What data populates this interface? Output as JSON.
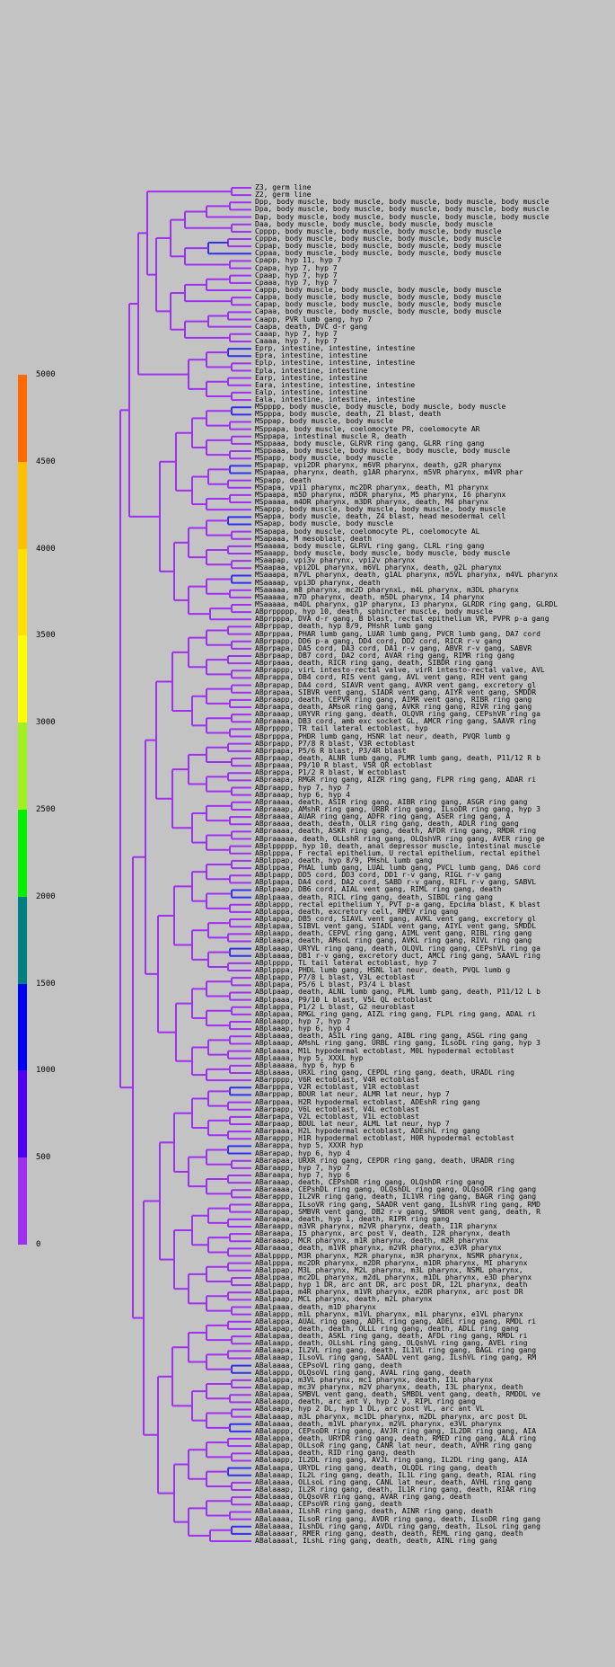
{
  "scale": {
    "labels": [
      "5000",
      "4500",
      "4000",
      "3500",
      "3000",
      "2500",
      "2000",
      "1500",
      "1000",
      "500",
      "0"
    ],
    "colors": [
      "#ff6a00",
      "#ffc000",
      "#ffe000",
      "#ffff00",
      "#a0f020",
      "#00f000",
      "#008080",
      "#0000f0",
      "#5000f0",
      "#a030f0"
    ]
  },
  "tree": {
    "branch_color": "#a030f0",
    "accent_color": "#3030f0",
    "leaves": [
      "Z3, germ line",
      "Z2, germ line",
      "Dpp, body muscle, body muscle, body muscle, body muscle, body muscle",
      "Dpa, body muscle, body muscle, body muscle, body muscle, body muscle",
      "Dap, body muscle, body muscle, body muscle, body muscle, body muscle",
      "Daa, body muscle, body muscle, body muscle, body muscle",
      "Cpppp, body muscle, body muscle, body muscle, body muscle",
      "Cpppa, body muscle, body muscle, body muscle, body muscle",
      "Cppap, body muscle, body muscle, body muscle, body muscle",
      "Cppaa, body muscle, body muscle, body muscle, body muscle",
      "Cpapp, hyp 11, hyp 7",
      "Cpapa, hyp 7, hyp 7",
      "Cpaap, hyp 7, hyp 7",
      "Cpaaa, hyp 7, hyp 7",
      "Cappp, body muscle, body muscle, body muscle, body muscle",
      "Cappa, body muscle, body muscle, body muscle, body muscle",
      "Capap, body muscle, body muscle, body muscle, body muscle",
      "Capaa, body muscle, body muscle, body muscle, body muscle",
      "Caapp, PVR lumb gang, hyp 7",
      "Caapa, death, DVC d-r gang",
      "Caaap, hyp 7, hyp 7",
      "Caaaa, hyp 7, hyp 7",
      "Eprp, intestine, intestine, intestine",
      "Epra, intestine, intestine",
      "Eplp, intestine, intestine, intestine",
      "Epla, intestine, intestine",
      "Earp, intestine, intestine",
      "Eara, intestine, intestine, intestine",
      "Ealp, intestine, intestine",
      "Eala, intestine, intestine, intestine",
      "MSpppp, body muscle, body muscle, body muscle, body muscle",
      "MSpppa, body muscle, death, Z1 blast, death",
      "MSppap, body muscle, body muscle",
      "MSppapa, body muscle, coelomocyte PR, coelomocyte AR",
      "MSppapa, intestinal muscle R, death",
      "MSppaaa, body muscle, GLRVR ring gang, GLRR ring gang",
      "MSppaaa, body muscle, body muscle, body muscle, body muscle",
      "MSpapp, body muscle, body muscle",
      "MSpapap, vpi2DR pharynx, m6VR pharynx, death, g2R pharynx",
      "MSpapaa, pharynx, death, g1AR pharynx, m5VR pharynx, m4VR phar",
      "MSpapp, death",
      "MSpapa, vpi1 pharynx, mc2DR pharynx, death, M1 pharynx",
      "MSpaapa, m5D pharynx, m5DR pharynx, M5 pharynx, I6 pharynx",
      "MSpaaaa, m4DR pharynx, m3DR pharynx, death, M4 pharynx",
      "MSappp, body muscle, body muscle, body muscle, body muscle",
      "MSappa, body muscle, death, Z4 blast, head mesodermal cell",
      "MSapap, body muscle, body muscle",
      "MSapapa, body muscle, coelomocyte PL, coelomocyte AL",
      "MSapaaa, M mesoblast, death",
      "MSaaaaa, body muscle, GLRVL ring gang, CLRL ring gang",
      "MSaaapp, body muscle, body muscle, body muscle, body muscle",
      "MSaapap, vpi3v pharynx, vpi2v pharynx",
      "MSaapaa, vpi2DL pharynx, m6VL pharynx, death, g2L pharynx",
      "MSaaapa, m7VL pharynx, death, g1AL pharynx, m5VL pharynx, m4VL pharynx",
      "MSaaaap, vpi3D pharynx, death",
      "MSaaaaa, m8 pharynx, mc2D pharynxL, m4L pharynx, m3DL pharynx",
      "MSaaaaa, m7D pharynx, death, m5DL pharynx, I4 pharynx",
      "MSaaaaa, m4DL pharynx, g1P pharynx, I3 pharynx, GLRDR ring gang, GLRDL",
      "ABprppppp, hyp 10, death, sphincter muscle, body muscle",
      "ABprpppa, DVA d-r gang, B blast, rectal epithelium VR, PVPR p-a gang",
      "ABprppap, death, hyp 8/9, PHshR lumb gang",
      "ABprppaa, PHAR lumb gang, LUAR lumb gang, PVCR lumb gang, DA7 cord",
      "ABprpapp, DD6 p-a gang, DD4 cord, DD2 cord, RICR r-v gang",
      "ABprpapa, DA5 cord, DA3 cord, DA1 r-v gang, ABVR r-v gang, SABVR",
      "ABprpaap, DB7 cord, DA2 cord, AVAR ring gang, RIMR ring gang",
      "ABprpaaa, death, RICR ring gang, death, SIBDR ring gang",
      "ABprappp, virL intesto-rectal valve, virR intesto-rectal valve, AVL",
      "ABprappa, DB4 cord, RIS vent gang, AVL vent gang, RIH vent gang",
      "ABprapap, DA4 cord, SIAVR vent gang, AVKR vent gang, excretory gl",
      "ABprapaa, SIBVR vent gang, SIADR vent gang, AIYR vent gang, SMDDR",
      "ABpraapp, death, CEPVR ring gang, AIMR vent gang, RIBR ring gang",
      "ABpraapa, death, AMsoR ring gang, AVKR ring gang, RIVR ring gang",
      "ABpraaap, URYVR ring gang, death, OLQVR ring gang, CEPshVR ring ga",
      "ABpraaaa, DB3 cord, amb exc socket GL, AMCR ring gang, SAAVR ring",
      "ABprpppp, TR tail lateral ectoblast, hyp",
      "ABprpppa, PHDR lumb gang, HSNR lat neur, death, PVQR lumb g",
      "ABprpapp, P7/8 R blast, V3R ectoblast",
      "ABprpapa, P5/6 R blast, P3/4R blast",
      "ABprpaap, death, ALNR lumb gang, PLMR lumb gang, death, P11/12 R b",
      "ABprpaaa, P9/10 R blast, V5R QR ectoblast",
      "ABprappa, P1/2 R blast, W ectoblast",
      "ABpraapa, RMGR ring gang, AIZR ring gang, FLPR ring gang, ADAR ri",
      "ABpraapp, hyp 7, hyp 7",
      "ABpraaap, hyp 6, hyp 4",
      "ABpraaaa, death, ASIR ring gang, AIBR ring gang, ASGR ring gang",
      "ABpraaap, AMshR ring gang, URBR ring gang, ILsoDR ring gang, hyp 3",
      "ABpraaaa, AUAR ring gang, ADFR ring gang, ASER ring gang, A",
      "ABpraaaa, death, death, OLLR ring gang, death, ADLR ring gang",
      "ABpraaaa, death, ASKR ring gang, death, AFDR ring gang, RMDR ring",
      "ABpraaaaa, death, OLLshR ring gang, OLQshVR ring gang, AVER ring ge",
      "ABplppppp, hyp 10, death, anal depressor muscle, intestinal muscle",
      "ABplpppa, F rectal epithelium, U rectal epithelium, rectal epithel",
      "ABplppap, death, hyp 8/9, PHshL lumb gang",
      "ABplppaa, PHAL lumb gang, LUAL lumb gang, PVCL lumb gang, DA6 cord",
      "ABplpapp, DD5 cord, DD3 cord, DD1 r-v gang, RIGL r-v gang",
      "ABplpapa, DA4 cord, DA2 cord, SABD r-v gang, RIFL r-v gang, SABVL",
      "ABplpaap, DB6 cord, AIAL vent gang, RIML ring gang, death",
      "ABplpaaa, death, RICL ring gang, death, SIBDL ring gang",
      "ABplappp, rectal epithelium Y, PVT p-a gang, Epcima blast, K blast",
      "ABplappa, death, excretory cell, RMEV ring gang",
      "ABplapap, DB5 cord, SIAVL vent gang, AVKL vent gang, excretory gl",
      "ABplapaa, SIBVL vent gang, SIADL vent gang, AIYL vent gang, SMDDL",
      "ABplaapp, death, CEPVL ring gang, AIML vent gang, RIBL ring gang",
      "ABplaapa, death, AMsoL ring gang, AVKL ring gang, RIVL ring gang",
      "ABplaaap, URYVL ring gang, death, OLQVL ring gang, CEPshVL ring ga",
      "ABplaaaa, DB1 r-v gang, excretory duct, AMCL ring gang, SAAVL ring",
      "ABplpppp, TL tail lateral ectoblast, hyp 7",
      "ABplpppa, PHDL lumb gang, HSNL lat neur, death, PVQL lumb g",
      "ABplpapp, P7/8 L blast, V3L ectoblast",
      "ABplpapa, P5/6 L blast, P3/4 L blast",
      "ABplpaap, death, ALNL lumb gang, PLML lumb gang, death, P11/12 L b",
      "ABplpaaa, P9/10 L blast, V5L QL ectoblast",
      "ABplappa, P1/2 L blast, G2 neuroblast",
      "ABplapaa, RMGL ring gang, AIZL ring gang, FLPL ring gang, ADAL ri",
      "ABplaapp, hyp 7, hyp 7",
      "ABplaaap, hyp 6, hyp 4",
      "ABplaaaa, death, ASIL ring gang, AIBL ring gang, ASGL ring gang",
      "ABplaaap, AMshL ring gang, URBL ring gang, ILsoDL ring gang, hyp 3",
      "ABplaaaa, M1L hypodermal ectoblast, M0L hypodermal ectoblast",
      "ABplaaaa, hyp 5, XXXL hyp",
      "ABplaaaaa, hyp 6, hyp 6",
      "ABplaaaa, URXL ring gang, CEPDL ring gang, death, URADL ring",
      "ABarpppp, V6R ectoblast, V4R ectoblast",
      "ABarpppa, V2R ectoblast, V1R ectoblast",
      "ABarppap, BDUR lat neur, ALMR lat neur, hyp 7",
      "ABarppaa, H2R hypodermal ectoblast, ADEshR ring gang",
      "ABarpapp, V6L ectoblast, V4L ectoblast",
      "ABarpapa, V2L ectoblast, V1L ectoblast",
      "ABarpaap, BDUL lat neur, ALML lat neur, hyp 7",
      "ABarpaaa, H2L hypodermal ectoblast, ADEshL ring gang",
      "ABarappp, H1R hypodermal ectoblast, H0R hypodermal ectoblast",
      "ABarappa, hyp 5, XXXR hyp",
      "ABarapap, hyp 6, hyp 4",
      "ABarapaa, URXR ring gang, CEPDR ring gang, death, URADR ring",
      "ABaraapp, hyp 7, hyp 7",
      "ABaraapa, hyp 7, hyp 6",
      "ABaraaap, death, CEPshDR ring gang, OLQshDR ring gang",
      "ABaraaaa, CEPshDL ring gang, OLQshDL ring gang, OLQsoDR ring gang",
      "ABarappp, IL2VR ring gang, death, IL1VR ring gang, BAGR ring gang",
      "ABarappa, ILsoVR ring gang, SAADR vent gang, ILshVR ring gang, RMD",
      "ABarapap, SMBVR vent gang, DB2 r-v gang, SMBDR vent gang, death, R",
      "ABarapaa, death, hyp 1, death, RIPR ring gang",
      "ABaraapp, m3VR pharynx, m2VR pharynx, death, I1R pharynx",
      "ABaraapa, I5 pharynx, arc post V, death, I2R pharynx, death",
      "ABaraaap, MCR pharynx, m1R pharynx, death, m2R pharynx",
      "ABaraaaa, death, m1VR pharynx, m2VR pharynx, e3VR pharynx",
      "ABalpppp, M3R pharynx, M2R pharynx, m3R pharynx, NSMR pharynx,",
      "ABalpppa, mc2DR pharynx, m2DR pharynx, m1DR pharynx, MI pharynx",
      "ABalppap, M3L pharynx, M2L pharynx, m3L pharynx, NSML pharynx,",
      "ABalppaa, mc2DL pharynx, m2dL pharynx, m1DL pharynx, e3D pharynx",
      "ABalpapp, hyp 1 DR, arc ant DR, arc post DR, I2L pharynx, death",
      "ABalpapa, m4R pharynx, m1VR pharynx, e2DR pharynx, arc post DR",
      "ABalpaap, MCL pharynx, death, m2L pharynx",
      "ABalpaaa, death, m1D pharynx",
      "ABalappp, m1L pharynx, m1VL pharynx, m1L pharynx, e1VL pharynx",
      "ABalappa, AUAL ring gang, ADFL ring gang, ADEL ring gang, RMDL ri",
      "ABalapap, death, death, OLLL ring gang, death, ADLL ring gang",
      "ABalapaa, death, ASKL ring gang, death, AFDL ring gang, RMDL ri",
      "ABalaapp, death, OLLshL ring gang, OLQshVL ring gang, AVEL ring",
      "ABalaapa, IL2VL ring gang, death, IL1VL ring gang, BAGL ring gang",
      "ABalaaap, ILsoVL ring gang, SAADL vent gang, ILshVL ring gang, RM",
      "ABalaaaa, CEPsoVL ring gang, death",
      "ABalappp, OLQsoVL ring gang, AVAL ring gang, death",
      "ABalappa, m3VL pharynx, mc1 pharynx, death, I1L pharynx",
      "ABalapap, mc3V pharynx, m2V pharynx, death, I3L pharynx, death",
      "ABalapaa, SMBVL vent gang, death, SMBDL vent gang, death, RMDDL ve",
      "ABalaapp, death, arc ant V, hyp 2 V, RIPL ring gang",
      "ABalaapa, hyp 2 DL, hyp 1 DL, arc post VL, arc ant VL",
      "ABalaaap, m3L pharynx, mc1DL pharynx, m2DL pharynx, arc post DL",
      "ABalaaaa, death, m1VL pharynx, m2VL pharynx, e3VL pharynx",
      "ABalappp, CEPsoDR ring gang, AVJR ring gang, IL2DR ring gang, AIA",
      "ABalappa, death, URYDR ring gang, death, RMED ring gang, ALA ring",
      "ABalapap, OLLsoR ring gang, CANR lat neur, death, AVHR ring gang",
      "ABalapaa, death, RID ring gang, death",
      "ABalaapp, IL2DL ring gang, AVJL ring gang, IL2DL ring gang, AIA",
      "ABalaapa, URYDL ring gang, death, OLQDL ring gang, death",
      "ABalaaap, IL2L ring gang, death, IL1L ring gang, death, RIAL ring",
      "ABalaaaa, OLLsoL ring gang, CANL lat neur, death, AVHL ring gang",
      "ABalaaap, IL2R ring gang, death, IL1R ring gang, death, RIAR ring",
      "ABalaaaa, OLQsoVR ring gang, AVAR ring gang, death",
      "ABalaaap, CEPsoVR ring gang, death",
      "ABalaaaa, ILshR ring gang, death, AINR ring gang, death",
      "ABalaaaa, ILsoR ring gang, AVDR ring gang, death, ILsoDR ring gang",
      "ABalaaaa, ILshDL ring gang, AVDL ring gang, death, ILsoL ring gang",
      "ABalaaaar, RMER ring gang, death, death, REML ring gang, death",
      "ABalaaaal, ILshL ring gang, death, death, AINL ring gang"
    ]
  }
}
